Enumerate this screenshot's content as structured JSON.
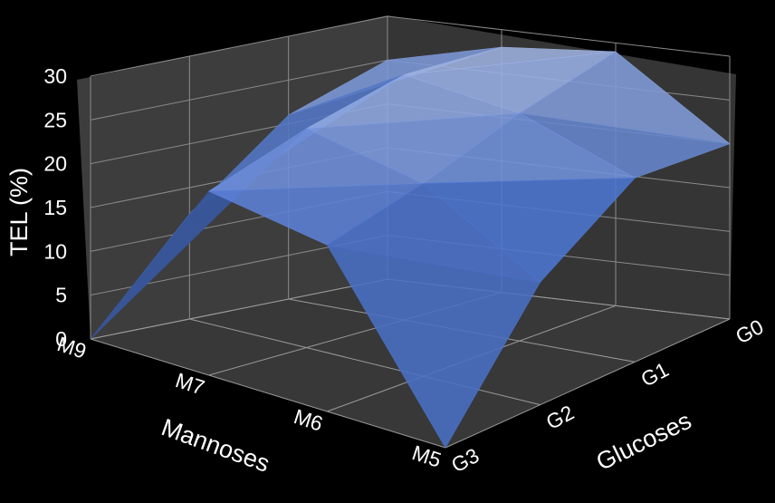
{
  "chart_data": {
    "type": "surface3d",
    "title": "",
    "xlabel": "Mannoses",
    "ylabel": "Glucoses",
    "zlabel": "TEL (%)",
    "x_categories": [
      "M9",
      "M7",
      "M6",
      "M5"
    ],
    "y_categories": [
      "G3",
      "G2",
      "G1",
      "G0"
    ],
    "z_ticks": [
      0,
      5,
      10,
      15,
      20,
      25,
      30
    ],
    "zlim": [
      0,
      30
    ],
    "grid": true,
    "surface_color": "#4f78d6",
    "grid_values_rows_mannose_cols_glucose": [
      [
        0,
        12,
        21,
        25
      ],
      [
        21,
        25,
        28,
        28
      ],
      [
        19,
        22,
        26,
        29
      ],
      [
        0,
        14,
        21,
        20
      ]
    ]
  }
}
